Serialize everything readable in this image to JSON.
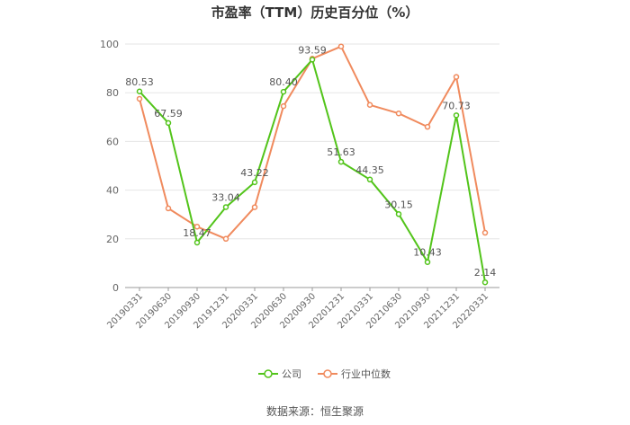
{
  "chart_data": {
    "type": "line",
    "title": "市盈率（TTM）历史百分位（%）",
    "categories": [
      "20190331",
      "20190630",
      "20190930",
      "20191231",
      "20200331",
      "20200630",
      "20200930",
      "20201231",
      "20210331",
      "20210630",
      "20210930",
      "20211231",
      "20220331"
    ],
    "series": [
      {
        "name": "公司",
        "color": "#52c41a",
        "values": [
          80.53,
          67.59,
          18.47,
          33.04,
          43.22,
          80.4,
          93.59,
          51.63,
          44.35,
          30.15,
          10.43,
          70.73,
          2.14
        ],
        "labels": [
          "80.53",
          "67.59",
          "18.47",
          "33.04",
          "43.22",
          "80.40",
          "93.59",
          "51.63",
          "44.35",
          "30.15",
          "10.43",
          "70.73",
          "2.14"
        ]
      },
      {
        "name": "行业中位数",
        "color": "#f08a5d",
        "values": [
          77.5,
          32.5,
          25,
          20,
          33,
          74.5,
          94,
          99,
          75,
          71.5,
          66,
          86.5,
          22.5
        ]
      }
    ],
    "ylim": [
      0,
      100
    ],
    "yticks": [
      0,
      20,
      40,
      60,
      80,
      100
    ],
    "grid": true,
    "legend": "bottom"
  },
  "source": "数据来源：恒生聚源"
}
